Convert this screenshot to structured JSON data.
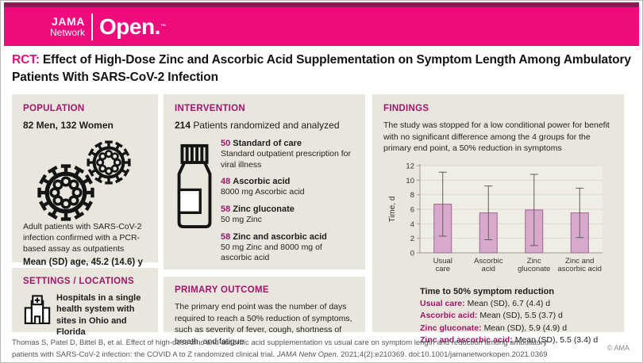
{
  "brand": {
    "pink": "#ee0b7c",
    "maroon": "#8a1a52",
    "logo_jama": "JAMA",
    "logo_network": "Network",
    "logo_open": "Open.",
    "logo_tm": "™"
  },
  "title": {
    "tag": "RCT:",
    "text": "Effect of High-Dose Zinc and Ascorbic Acid Supplementation on Symptom Length Among Ambulatory Patients With SARS-CoV-2 Infection"
  },
  "population": {
    "heading": "POPULATION",
    "counts": "82 Men, 132 Women",
    "description": "Adult patients with SARS-CoV-2 infection confirmed with a PCR-based assay as outpatients",
    "age": "Mean (SD) age, 45.2 (14.6) y"
  },
  "settings": {
    "heading": "SETTINGS / LOCATIONS",
    "description": "Hospitals in a single health system with sites in Ohio and Florida"
  },
  "intervention": {
    "heading": "INTERVENTION",
    "total": "214",
    "total_label": "Patients randomized and analyzed",
    "groups": [
      {
        "n": "50",
        "name": "Standard of care",
        "detail": "Standard outpatient prescription for viral illness"
      },
      {
        "n": "48",
        "name": "Ascorbic acid",
        "detail": "8000 mg Ascorbic acid"
      },
      {
        "n": "58",
        "name": "Zinc gluconate",
        "detail": "50 mg Zinc"
      },
      {
        "n": "58",
        "name": "Zinc and ascorbic acid",
        "detail": "50 mg Zinc and 8000 mg of ascorbic acid"
      }
    ]
  },
  "primary_outcome": {
    "heading": "PRIMARY OUTCOME",
    "text": "The primary end point was the number of days required to reach a 50% reduction of symptoms, such as severity of fever, cough, shortness of breath, and fatigue"
  },
  "findings": {
    "heading": "FINDINGS",
    "summary": "The study was stopped for a low conditional power for benefit with no significant difference among the 4 groups for the primary end point, a 50% reduction in symptoms",
    "stats_title": "Time to 50% symptom reduction",
    "stats": [
      {
        "label": "Usual care:",
        "value": "Mean (SD), 6.7 (4.4) d"
      },
      {
        "label": "Ascorbic acid:",
        "value": "Mean (SD), 5.5 (3.7) d"
      },
      {
        "label": "Zinc gluconate:",
        "value": "Mean (SD), 5.9 (4.9) d"
      },
      {
        "label": "Zinc and ascorbic acid:",
        "value": "Mean (SD), 5.5 (3.4) d"
      }
    ]
  },
  "chart_data": {
    "type": "bar",
    "title": "",
    "categories": [
      [
        "Usual",
        "care"
      ],
      [
        "Ascorbic",
        "acid"
      ],
      [
        "Zinc",
        "gluconate"
      ],
      [
        "Zinc and",
        "ascorbic acid"
      ]
    ],
    "values": [
      6.7,
      5.5,
      5.9,
      5.5
    ],
    "sd": [
      4.4,
      3.7,
      4.9,
      3.4
    ],
    "xlabel": "",
    "ylabel": "Time, d",
    "ylim": [
      0,
      12
    ],
    "ytick_step": 2,
    "grid": true,
    "legend": "none",
    "bar_fill": "#d9a9cc",
    "bar_stroke": "#9b6595",
    "plot_bg": "#efeee4",
    "grid_color": "#dcdacf",
    "axis_color": "#9a9a95",
    "error_color": "#5f5f5f",
    "text_color": "#333333"
  },
  "footer": {
    "citation_before_italic": "Thomas S, Patel D, Bittel B, et al. Effect of high-dose zinc and ascorbic acid supplementation vs usual care on symptom length and reduction among ambulatory patients with SARS-CoV-2 infection: the COVID A to Z randomized clinical trial. ",
    "citation_italic": "JAMA Netw Open",
    "citation_after_italic": ". 2021;4(2):e210369. doi:10.1001/jamanetworkopen.2021.0369",
    "copyright": "© AMA"
  }
}
